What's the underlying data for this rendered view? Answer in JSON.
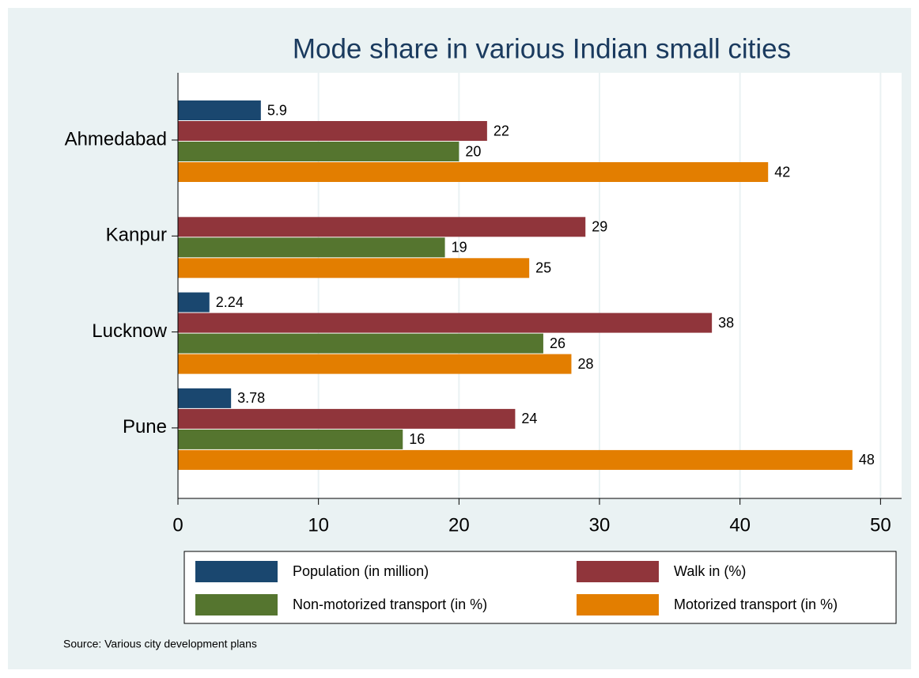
{
  "chart_data": {
    "type": "hbar",
    "title": "Mode share in various Indian small cities",
    "categories": [
      "Ahmedabad",
      "Kanpur",
      "Lucknow",
      "Pune"
    ],
    "series": [
      {
        "name": "Population (in million)",
        "color": "#1a476f",
        "values": [
          5.9,
          null,
          2.24,
          3.78
        ]
      },
      {
        "name": "Walk in (%)",
        "color": "#90353b",
        "values": [
          22,
          29,
          38,
          24
        ]
      },
      {
        "name": "Non-motorized transport (in %)",
        "color": "#55752f",
        "values": [
          20,
          19,
          26,
          16
        ]
      },
      {
        "name": "Motorized transport (in %)",
        "color": "#e37e00",
        "values": [
          42,
          25,
          28,
          48
        ]
      }
    ],
    "xlim": [
      0,
      51.5
    ],
    "xticks": [
      0,
      10,
      20,
      30,
      40,
      50
    ],
    "grid": true,
    "note": "Source: Various city development plans"
  }
}
